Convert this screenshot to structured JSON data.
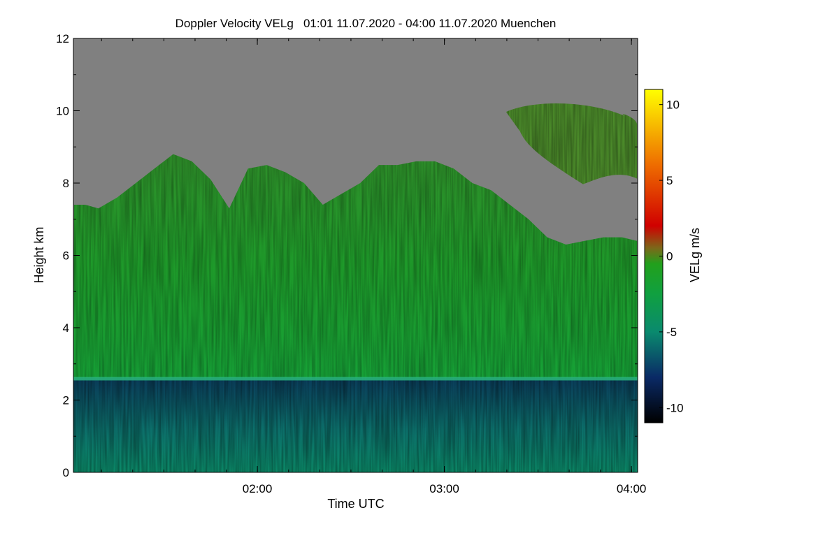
{
  "chart_data": {
    "type": "heatmap",
    "title": "Doppler Velocity VELg   01:01 11.07.2020 - 04:00 11.07.2020 Muenchen",
    "xlabel": "Time UTC",
    "ylabel": "Height km",
    "colorbar_label": "VELg m/s",
    "x_range_hours": [
      1.0167,
      4.0333
    ],
    "xlim_labels": [
      "01:01",
      "04:00"
    ],
    "x_ticks": [
      {
        "value": 2.0,
        "label": "02:00"
      },
      {
        "value": 3.0,
        "label": "03:00"
      },
      {
        "value": 4.0,
        "label": "04:00"
      }
    ],
    "x_minor_step_hours": 0.1667,
    "ylim": [
      0,
      12
    ],
    "y_ticks": [
      0,
      2,
      4,
      6,
      8,
      10,
      12
    ],
    "y_minor_step": 1,
    "clim": [
      -11,
      11
    ],
    "colorbar_ticks": [
      10,
      5,
      0,
      -5,
      -10
    ],
    "colormap_stops": [
      {
        "value": -11,
        "color": "#000000"
      },
      {
        "value": -8,
        "color": "#0a2a66"
      },
      {
        "value": -5,
        "color": "#0a8a6e"
      },
      {
        "value": -2.5,
        "color": "#10a040"
      },
      {
        "value": -0.5,
        "color": "#22a01c"
      },
      {
        "value": 0.5,
        "color": "#7a6a1a"
      },
      {
        "value": 2,
        "color": "#d00000"
      },
      {
        "value": 6,
        "color": "#ee6c00"
      },
      {
        "value": 11,
        "color": "#ffff00"
      }
    ],
    "no_signal_color": "#808080",
    "regions": [
      {
        "name": "boundary-layer",
        "height_km": [
          0,
          2.6
        ],
        "typical_velocity_ms": -6
      },
      {
        "name": "cloud-layer",
        "height_km": [
          2.6,
          8.5
        ],
        "typical_velocity_ms": -1.5
      },
      {
        "name": "upper-cloud",
        "height_km": [
          8.2,
          10.2
        ],
        "time_hours": [
          3.33,
          4.03
        ],
        "typical_velocity_ms": -0.5
      }
    ],
    "cloud_top_km": [
      [
        1.02,
        7.4
      ],
      [
        1.08,
        7.4
      ],
      [
        1.15,
        7.3
      ],
      [
        1.25,
        7.6
      ],
      [
        1.35,
        8.0
      ],
      [
        1.45,
        8.4
      ],
      [
        1.55,
        8.8
      ],
      [
        1.65,
        8.6
      ],
      [
        1.75,
        8.1
      ],
      [
        1.85,
        7.3
      ],
      [
        1.95,
        8.4
      ],
      [
        2.05,
        8.5
      ],
      [
        2.15,
        8.3
      ],
      [
        2.25,
        8.0
      ],
      [
        2.35,
        7.4
      ],
      [
        2.45,
        7.7
      ],
      [
        2.55,
        8.0
      ],
      [
        2.65,
        8.5
      ],
      [
        2.75,
        8.5
      ],
      [
        2.85,
        8.6
      ],
      [
        2.95,
        8.6
      ],
      [
        3.05,
        8.4
      ],
      [
        3.15,
        8.0
      ],
      [
        3.25,
        7.8
      ],
      [
        3.35,
        7.4
      ],
      [
        3.45,
        7.0
      ],
      [
        3.55,
        6.5
      ],
      [
        3.65,
        6.3
      ],
      [
        3.75,
        6.4
      ],
      [
        3.85,
        6.5
      ],
      [
        3.95,
        6.5
      ],
      [
        4.03,
        6.4
      ]
    ],
    "boundary_layer_top_km": 2.6
  }
}
